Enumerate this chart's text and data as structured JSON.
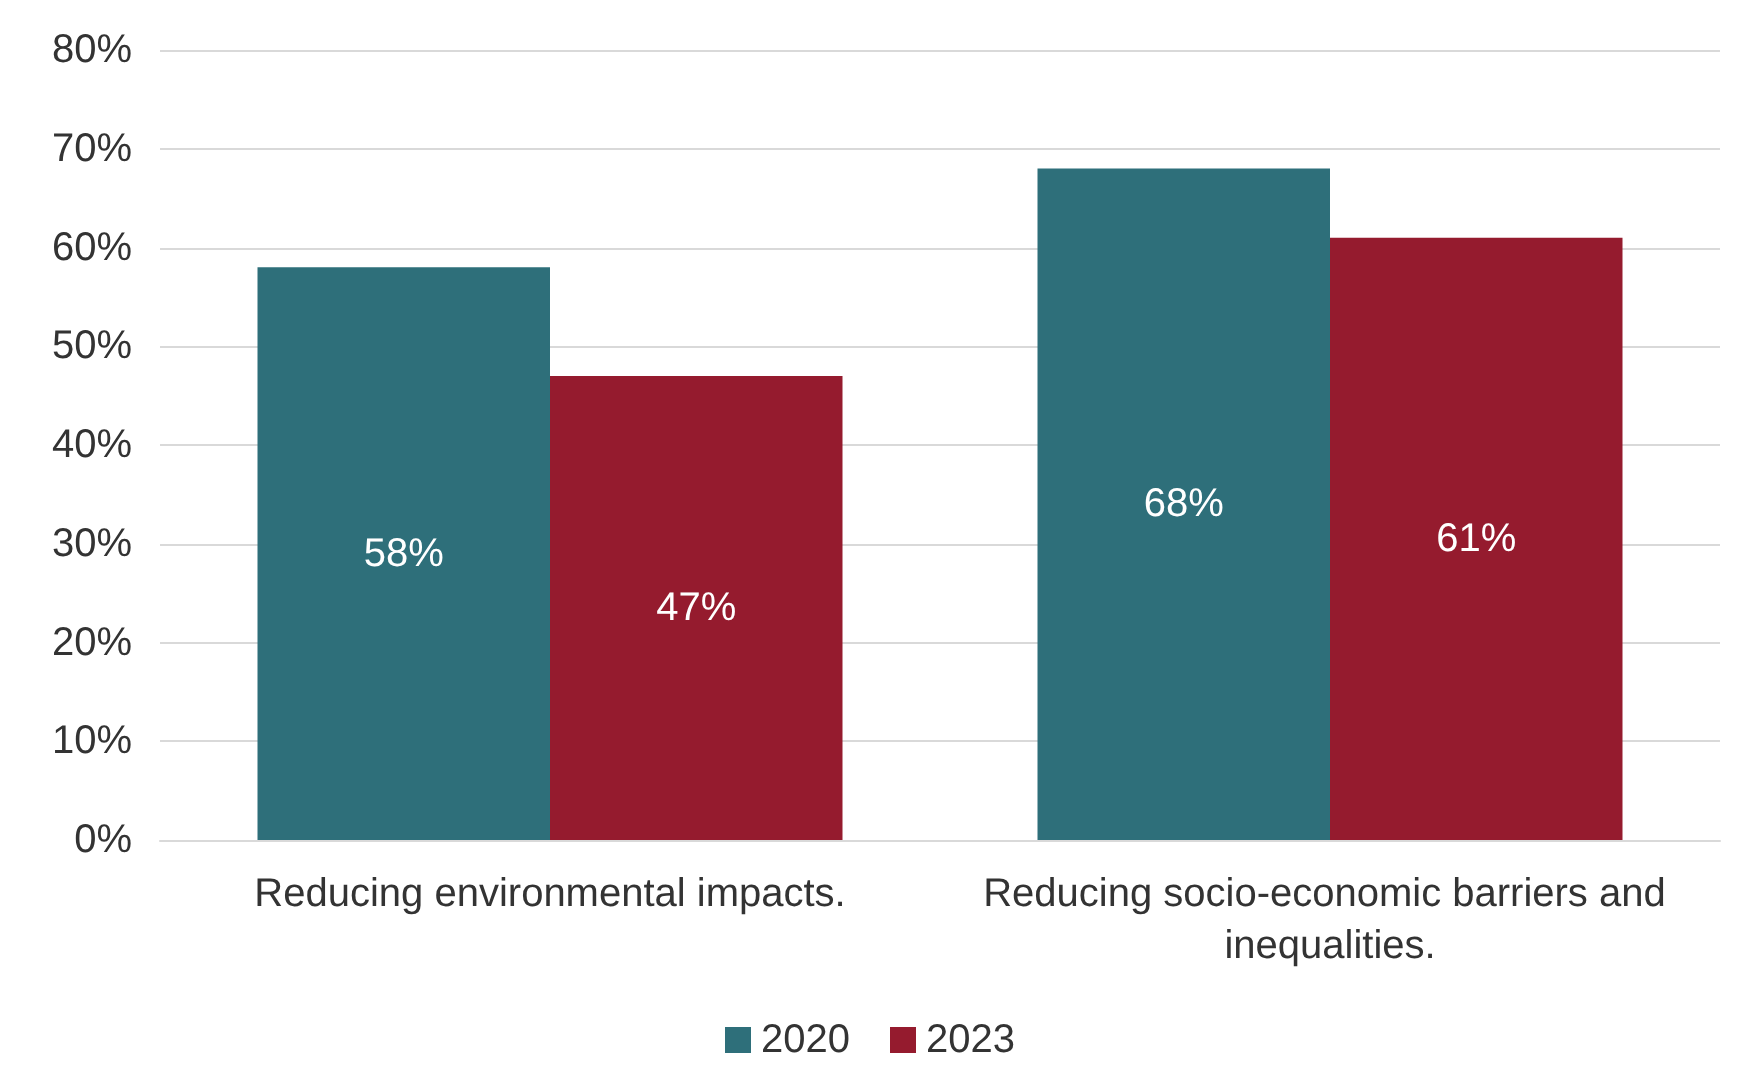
{
  "chart_data": {
    "type": "bar",
    "categories": [
      "Reducing environmental impacts.",
      "Reducing socio-economic barriers and inequalities."
    ],
    "series": [
      {
        "name": "2020",
        "color": "#2e6f7a",
        "values": [
          58,
          68
        ],
        "value_labels": [
          "58%",
          "68%"
        ]
      },
      {
        "name": "2023",
        "color": "#951b2e",
        "values": [
          47,
          61
        ],
        "value_labels": [
          "47%",
          "61%"
        ]
      }
    ],
    "ylim": [
      0,
      80
    ],
    "yticks": [
      {
        "value": 0,
        "label": "0%"
      },
      {
        "value": 10,
        "label": "10%"
      },
      {
        "value": 20,
        "label": "20%"
      },
      {
        "value": 30,
        "label": "30%"
      },
      {
        "value": 40,
        "label": "40%"
      },
      {
        "value": 50,
        "label": "50%"
      },
      {
        "value": 60,
        "label": "60%"
      },
      {
        "value": 70,
        "label": "70%"
      },
      {
        "value": 80,
        "label": "80%"
      }
    ],
    "grid": "y",
    "legend": "bottom"
  }
}
